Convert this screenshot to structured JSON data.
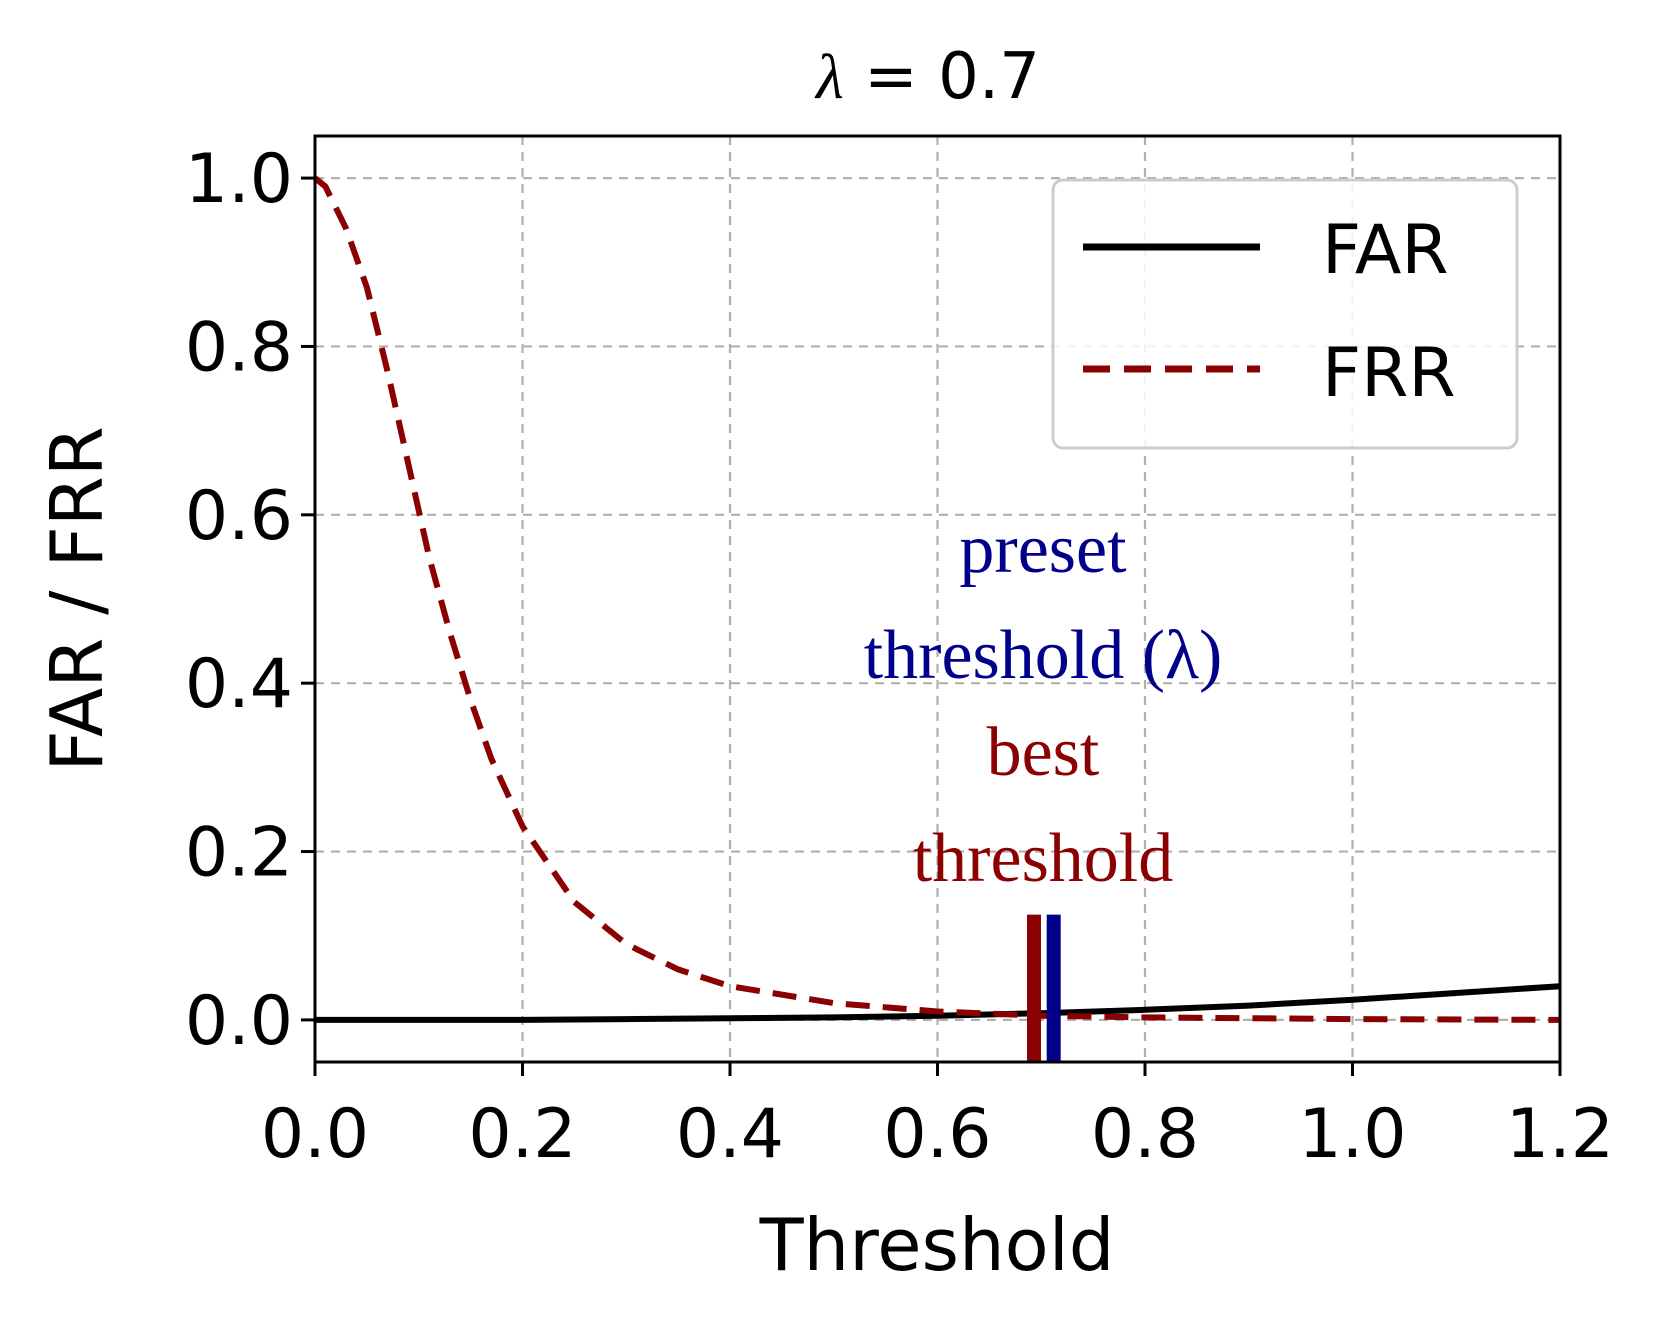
{
  "chart_data": {
    "type": "line",
    "title_symbol": "λ",
    "title_rest": " = 0.7",
    "xlabel": "Threshold",
    "ylabel": "FAR / FRR",
    "xlim": [
      0.0,
      1.2
    ],
    "ylim": [
      -0.05,
      1.05
    ],
    "xticks": [
      0.0,
      0.2,
      0.4,
      0.6,
      0.8,
      1.0,
      1.2
    ],
    "xtick_labels": [
      "0.0",
      "0.2",
      "0.4",
      "0.6",
      "0.8",
      "1.0",
      "1.2"
    ],
    "yticks": [
      0.0,
      0.2,
      0.4,
      0.6,
      0.8,
      1.0
    ],
    "ytick_labels": [
      "0.0",
      "0.2",
      "0.4",
      "0.6",
      "0.8",
      "1.0"
    ],
    "grid": true,
    "legend_position": "top-right",
    "series": [
      {
        "name": "FAR",
        "style": "solid",
        "color": "#000000",
        "x": [
          0.0,
          0.1,
          0.2,
          0.3,
          0.4,
          0.5,
          0.6,
          0.7,
          0.8,
          0.9,
          1.0,
          1.1,
          1.2
        ],
        "y": [
          0.0,
          0.0,
          0.0,
          0.001,
          0.002,
          0.003,
          0.005,
          0.008,
          0.012,
          0.017,
          0.024,
          0.032,
          0.04
        ]
      },
      {
        "name": "FRR",
        "style": "dashed",
        "color": "#8b0000",
        "x": [
          0.0,
          0.01,
          0.03,
          0.05,
          0.07,
          0.09,
          0.11,
          0.13,
          0.15,
          0.17,
          0.2,
          0.25,
          0.3,
          0.35,
          0.4,
          0.5,
          0.6,
          0.7,
          0.8,
          0.9,
          1.0,
          1.2
        ],
        "y": [
          1.0,
          0.99,
          0.94,
          0.87,
          0.77,
          0.66,
          0.55,
          0.46,
          0.38,
          0.31,
          0.23,
          0.14,
          0.09,
          0.06,
          0.04,
          0.02,
          0.01,
          0.005,
          0.003,
          0.002,
          0.001,
          0.0
        ]
      }
    ],
    "markers": [
      {
        "name": "best threshold",
        "x": 0.693,
        "y_top": 0.125,
        "color": "#8b0000"
      },
      {
        "name": "preset threshold (λ)",
        "x": 0.712,
        "y_top": 0.125,
        "color": "#00008b"
      }
    ],
    "annotations": [
      {
        "lines": [
          "preset",
          "threshold (λ)"
        ],
        "color": "#00008b"
      },
      {
        "lines": [
          "best",
          "threshold"
        ],
        "color": "#8b0000"
      }
    ]
  }
}
